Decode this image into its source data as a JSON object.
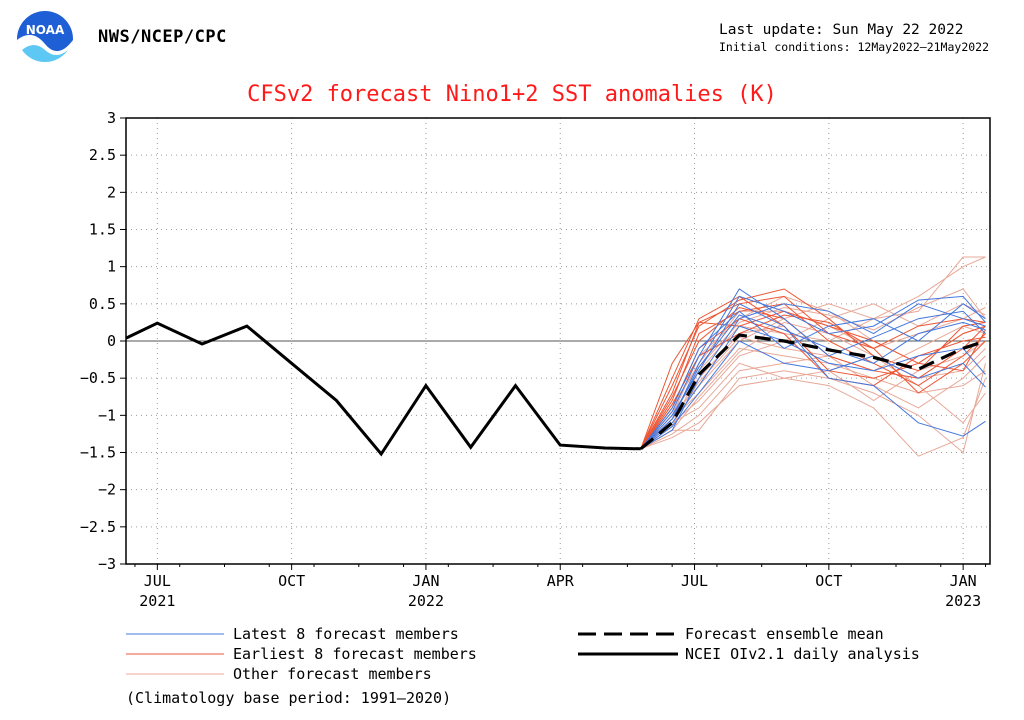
{
  "header": {
    "agency": "NWS/NCEP/CPC",
    "last_update": "Last update: Sun May 22 2022",
    "initial_conditions": "Initial conditions: 12May2022–21May2022",
    "logo_text": "NOAA"
  },
  "footer": {
    "climatology_note": "(Climatology base period: 1991–2020)"
  },
  "chart_data": {
    "type": "line",
    "title": "CFSv2 forecast Nino1+2 SST anomalies (K)",
    "xlabel": "",
    "ylabel": "",
    "ylim": [
      -3,
      3
    ],
    "xlim": [
      -0.2,
      19.1
    ],
    "grid": true,
    "zero_line": true,
    "yticks": [
      {
        "v": 3,
        "label": "3"
      },
      {
        "v": 2.5,
        "label": "2.5"
      },
      {
        "v": 2,
        "label": "2"
      },
      {
        "v": 1.5,
        "label": "1.5"
      },
      {
        "v": 1,
        "label": "1"
      },
      {
        "v": 0.5,
        "label": "0.5"
      },
      {
        "v": 0,
        "label": "0"
      },
      {
        "v": -0.5,
        "label": "−0.5"
      },
      {
        "v": -1,
        "label": "−1"
      },
      {
        "v": -1.5,
        "label": "−1.5"
      },
      {
        "v": -2,
        "label": "−2"
      },
      {
        "v": -2.5,
        "label": "−2.5"
      },
      {
        "v": -3,
        "label": "−3"
      }
    ],
    "xticks": [
      {
        "v": 0.5,
        "label": "JUL",
        "sub": "2021"
      },
      {
        "v": 3.5,
        "label": "OCT",
        "sub": ""
      },
      {
        "v": 6.5,
        "label": "JAN",
        "sub": "2022"
      },
      {
        "v": 9.5,
        "label": "APR",
        "sub": ""
      },
      {
        "v": 12.5,
        "label": "JUL",
        "sub": ""
      },
      {
        "v": 15.5,
        "label": "OCT",
        "sub": ""
      },
      {
        "v": 18.5,
        "label": "JAN",
        "sub": "2023"
      }
    ],
    "legend": [
      {
        "key": "latest",
        "label": "Latest 8 forecast members",
        "color": "#4477dd",
        "style": "thin"
      },
      {
        "key": "earliest",
        "label": "Earliest 8 forecast members",
        "color": "#ee5533",
        "style": "thin"
      },
      {
        "key": "other",
        "label": "Other forecast members",
        "color": "#e8a898",
        "style": "thin"
      },
      {
        "key": "mean",
        "label": "Forecast ensemble mean",
        "color": "#000000",
        "style": "dashed"
      },
      {
        "key": "obs",
        "label": "NCEI OIv2.1 daily analysis",
        "color": "#000000",
        "style": "solid"
      }
    ],
    "analysis": {
      "name": "NCEI OIv2.1 daily analysis",
      "x": [
        -0.5,
        0.5,
        1.5,
        2.5,
        3.5,
        4.5,
        5.5,
        6.5,
        7.5,
        8.5,
        9.5,
        10.5,
        11.3
      ],
      "y": [
        -0.05,
        0.24,
        -0.04,
        0.2,
        -0.3,
        -0.8,
        -1.52,
        -0.6,
        -1.43,
        -0.6,
        -1.4,
        -1.44,
        -1.45
      ]
    },
    "ensemble_mean": {
      "name": "Forecast ensemble mean",
      "x": [
        11.3,
        12.0,
        12.6,
        13.5,
        14.5,
        15.5,
        16.5,
        17.5,
        18.5,
        19.0
      ],
      "y": [
        -1.45,
        -1.1,
        -0.45,
        0.08,
        0.0,
        -0.12,
        -0.22,
        -0.38,
        -0.1,
        0.0
      ]
    },
    "member_x": [
      11.3,
      12.0,
      12.6,
      13.5,
      14.5,
      15.5,
      16.5,
      17.5,
      18.5,
      19.0
    ],
    "members_latest": [
      [
        -1.45,
        -1.05,
        -0.3,
        0.6,
        0.4,
        0.1,
        0.2,
        0.55,
        0.6,
        0.25
      ],
      [
        -1.45,
        -0.95,
        -0.2,
        0.7,
        0.3,
        -0.2,
        0.05,
        0.3,
        0.4,
        0.1
      ],
      [
        -1.45,
        -1.2,
        -0.5,
        0.3,
        0.5,
        0.4,
        0.1,
        0.5,
        0.3,
        0.2
      ],
      [
        -1.45,
        -1.1,
        -0.6,
        0.2,
        0.0,
        -0.3,
        -0.4,
        -0.2,
        -0.1,
        -0.45
      ],
      [
        -1.45,
        -1.0,
        -0.4,
        0.5,
        0.2,
        -0.5,
        -0.6,
        -1.1,
        -1.28,
        -1.08
      ],
      [
        -1.45,
        -0.9,
        -0.1,
        0.4,
        -0.1,
        0.2,
        0.3,
        0.0,
        0.5,
        0.3
      ],
      [
        -1.45,
        -1.15,
        -0.7,
        0.0,
        -0.3,
        -0.4,
        -0.2,
        -0.5,
        -0.3,
        -0.62
      ],
      [
        -1.45,
        -1.05,
        -0.35,
        0.35,
        0.15,
        -0.1,
        -0.3,
        0.1,
        0.25,
        0.15
      ]
    ],
    "members_earliest": [
      [
        -1.45,
        -0.7,
        0.25,
        0.5,
        0.6,
        0.1,
        -0.1,
        0.2,
        0.3,
        0.25
      ],
      [
        -1.45,
        -0.5,
        0.3,
        0.6,
        0.2,
        -0.4,
        -0.5,
        -0.3,
        0.1,
        0.2
      ],
      [
        -1.45,
        -0.8,
        0.1,
        0.4,
        0.5,
        0.0,
        -0.3,
        -0.6,
        -0.2,
        0.1
      ],
      [
        -1.45,
        -0.6,
        0.2,
        0.55,
        0.7,
        0.3,
        -0.2,
        -0.4,
        0.2,
        0.25
      ],
      [
        -1.45,
        -0.9,
        -0.1,
        0.3,
        0.1,
        -0.5,
        -0.6,
        -0.2,
        0.0,
        0.05
      ],
      [
        -1.45,
        -0.3,
        0.25,
        0.2,
        0.4,
        0.2,
        0.0,
        -0.3,
        -0.4,
        0.15
      ],
      [
        -1.45,
        -0.75,
        0.0,
        0.45,
        0.3,
        -0.2,
        -0.4,
        -0.5,
        -0.1,
        0.2
      ],
      [
        -1.45,
        -0.85,
        -0.2,
        0.1,
        0.35,
        0.25,
        -0.1,
        -0.7,
        -0.3,
        0.0
      ]
    ],
    "members_other": [
      [
        -1.45,
        -1.1,
        -0.9,
        -0.3,
        -0.5,
        -0.6,
        -0.9,
        -1.55,
        -1.3,
        -0.5
      ],
      [
        -1.45,
        -1.2,
        -1.2,
        -0.5,
        -0.4,
        -0.5,
        -0.7,
        -1.0,
        -1.5,
        -0.3
      ],
      [
        -1.45,
        -1.0,
        -0.6,
        0.0,
        0.3,
        0.5,
        0.3,
        0.6,
        1.0,
        1.13
      ],
      [
        -1.45,
        -1.15,
        -0.4,
        0.2,
        0.1,
        0.0,
        0.3,
        0.4,
        1.13,
        1.13
      ],
      [
        -1.45,
        -1.05,
        -0.7,
        -0.1,
        -0.2,
        -0.3,
        -0.5,
        -0.7,
        -0.6,
        -0.4
      ],
      [
        -1.45,
        -0.9,
        -0.3,
        0.4,
        0.4,
        0.2,
        -0.1,
        0.1,
        0.3,
        0.45
      ],
      [
        -1.45,
        -1.25,
        -1.0,
        -0.4,
        -0.3,
        -0.2,
        -0.6,
        -0.9,
        -0.5,
        -0.2
      ],
      [
        -1.45,
        -0.95,
        -0.5,
        0.1,
        0.2,
        -0.4,
        -0.8,
        -0.4,
        -0.2,
        0.0
      ],
      [
        -1.45,
        -1.1,
        -0.8,
        -0.2,
        0.0,
        0.3,
        0.5,
        0.2,
        0.5,
        0.35
      ],
      [
        -1.45,
        -1.0,
        -0.2,
        0.3,
        0.6,
        0.4,
        0.0,
        -0.3,
        0.1,
        0.2
      ],
      [
        -1.45,
        -1.3,
        -1.1,
        -0.6,
        -0.5,
        -0.4,
        -0.2,
        -0.6,
        -1.1,
        -0.7
      ],
      [
        -1.45,
        -1.05,
        -0.55,
        0.05,
        -0.1,
        -0.2,
        -0.4,
        -0.1,
        0.2,
        0.1
      ],
      [
        -1.45,
        -1.2,
        -0.75,
        -0.15,
        0.25,
        0.1,
        -0.2,
        -0.5,
        -0.4,
        -0.1
      ],
      [
        -1.45,
        -0.85,
        -0.35,
        0.25,
        0.45,
        0.35,
        0.15,
        0.45,
        0.7,
        0.3
      ]
    ]
  }
}
